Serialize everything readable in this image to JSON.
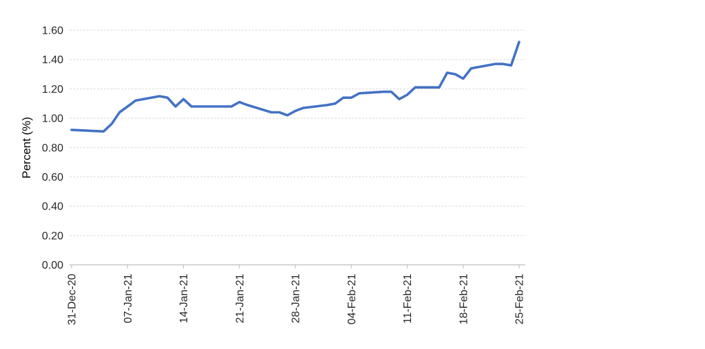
{
  "chart_data": {
    "type": "line",
    "title": "",
    "xlabel": "",
    "ylabel": "Percent (%)",
    "ylim": [
      0.0,
      1.6
    ],
    "ytick_step": 0.2,
    "grid": "horizontal-dashed",
    "legend": "none",
    "yticks": [
      {
        "label": "0.00",
        "value": 0.0
      },
      {
        "label": "0.20",
        "value": 0.2
      },
      {
        "label": "0.40",
        "value": 0.4
      },
      {
        "label": "0.60",
        "value": 0.6
      },
      {
        "label": "0.80",
        "value": 0.8
      },
      {
        "label": "1.00",
        "value": 1.0
      },
      {
        "label": "1.20",
        "value": 1.2
      },
      {
        "label": "1.40",
        "value": 1.4
      },
      {
        "label": "1.60",
        "value": 1.6
      }
    ],
    "xticks": [
      {
        "label": "31-Dec-20",
        "day": 0
      },
      {
        "label": "07-Jan-21",
        "day": 7
      },
      {
        "label": "14-Jan-21",
        "day": 14
      },
      {
        "label": "21-Jan-21",
        "day": 21
      },
      {
        "label": "28-Jan-21",
        "day": 28
      },
      {
        "label": "04-Feb-21",
        "day": 35
      },
      {
        "label": "11-Feb-21",
        "day": 42
      },
      {
        "label": "18-Feb-21",
        "day": 49
      },
      {
        "label": "25-Feb-21",
        "day": 56
      }
    ],
    "x_axis_unit": "calendar days from 31-Dec-20",
    "series": [
      {
        "color": "#4472C4",
        "points": [
          {
            "date": "31-Dec-20",
            "day": 0,
            "value": 0.92
          },
          {
            "date": "04-Jan-21",
            "day": 4,
            "value": 0.91
          },
          {
            "date": "05-Jan-21",
            "day": 5,
            "value": 0.96
          },
          {
            "date": "06-Jan-21",
            "day": 6,
            "value": 1.04
          },
          {
            "date": "07-Jan-21",
            "day": 7,
            "value": 1.08
          },
          {
            "date": "08-Jan-21",
            "day": 8,
            "value": 1.12
          },
          {
            "date": "11-Jan-21",
            "day": 11,
            "value": 1.15
          },
          {
            "date": "12-Jan-21",
            "day": 12,
            "value": 1.14
          },
          {
            "date": "13-Jan-21",
            "day": 13,
            "value": 1.08
          },
          {
            "date": "14-Jan-21",
            "day": 14,
            "value": 1.13
          },
          {
            "date": "15-Jan-21",
            "day": 15,
            "value": 1.08
          },
          {
            "date": "19-Jan-21",
            "day": 19,
            "value": 1.08
          },
          {
            "date": "20-Jan-21",
            "day": 20,
            "value": 1.08
          },
          {
            "date": "21-Jan-21",
            "day": 21,
            "value": 1.11
          },
          {
            "date": "22-Jan-21",
            "day": 22,
            "value": 1.09
          },
          {
            "date": "25-Jan-21",
            "day": 25,
            "value": 1.04
          },
          {
            "date": "26-Jan-21",
            "day": 26,
            "value": 1.04
          },
          {
            "date": "27-Jan-21",
            "day": 27,
            "value": 1.02
          },
          {
            "date": "28-Jan-21",
            "day": 28,
            "value": 1.05
          },
          {
            "date": "29-Jan-21",
            "day": 29,
            "value": 1.07
          },
          {
            "date": "01-Feb-21",
            "day": 32,
            "value": 1.09
          },
          {
            "date": "02-Feb-21",
            "day": 33,
            "value": 1.1
          },
          {
            "date": "03-Feb-21",
            "day": 34,
            "value": 1.14
          },
          {
            "date": "04-Feb-21",
            "day": 35,
            "value": 1.14
          },
          {
            "date": "05-Feb-21",
            "day": 36,
            "value": 1.17
          },
          {
            "date": "08-Feb-21",
            "day": 39,
            "value": 1.18
          },
          {
            "date": "09-Feb-21",
            "day": 40,
            "value": 1.18
          },
          {
            "date": "10-Feb-21",
            "day": 41,
            "value": 1.13
          },
          {
            "date": "11-Feb-21",
            "day": 42,
            "value": 1.16
          },
          {
            "date": "12-Feb-21",
            "day": 43,
            "value": 1.21
          },
          {
            "date": "15-Feb-21",
            "day": 46,
            "value": 1.21
          },
          {
            "date": "16-Feb-21",
            "day": 47,
            "value": 1.31
          },
          {
            "date": "17-Feb-21",
            "day": 48,
            "value": 1.3
          },
          {
            "date": "18-Feb-21",
            "day": 49,
            "value": 1.27
          },
          {
            "date": "19-Feb-21",
            "day": 50,
            "value": 1.34
          },
          {
            "date": "22-Feb-21",
            "day": 53,
            "value": 1.37
          },
          {
            "date": "23-Feb-21",
            "day": 54,
            "value": 1.37
          },
          {
            "date": "24-Feb-21",
            "day": 55,
            "value": 1.36
          },
          {
            "date": "25-Feb-21",
            "day": 56,
            "value": 1.52
          }
        ]
      }
    ]
  }
}
